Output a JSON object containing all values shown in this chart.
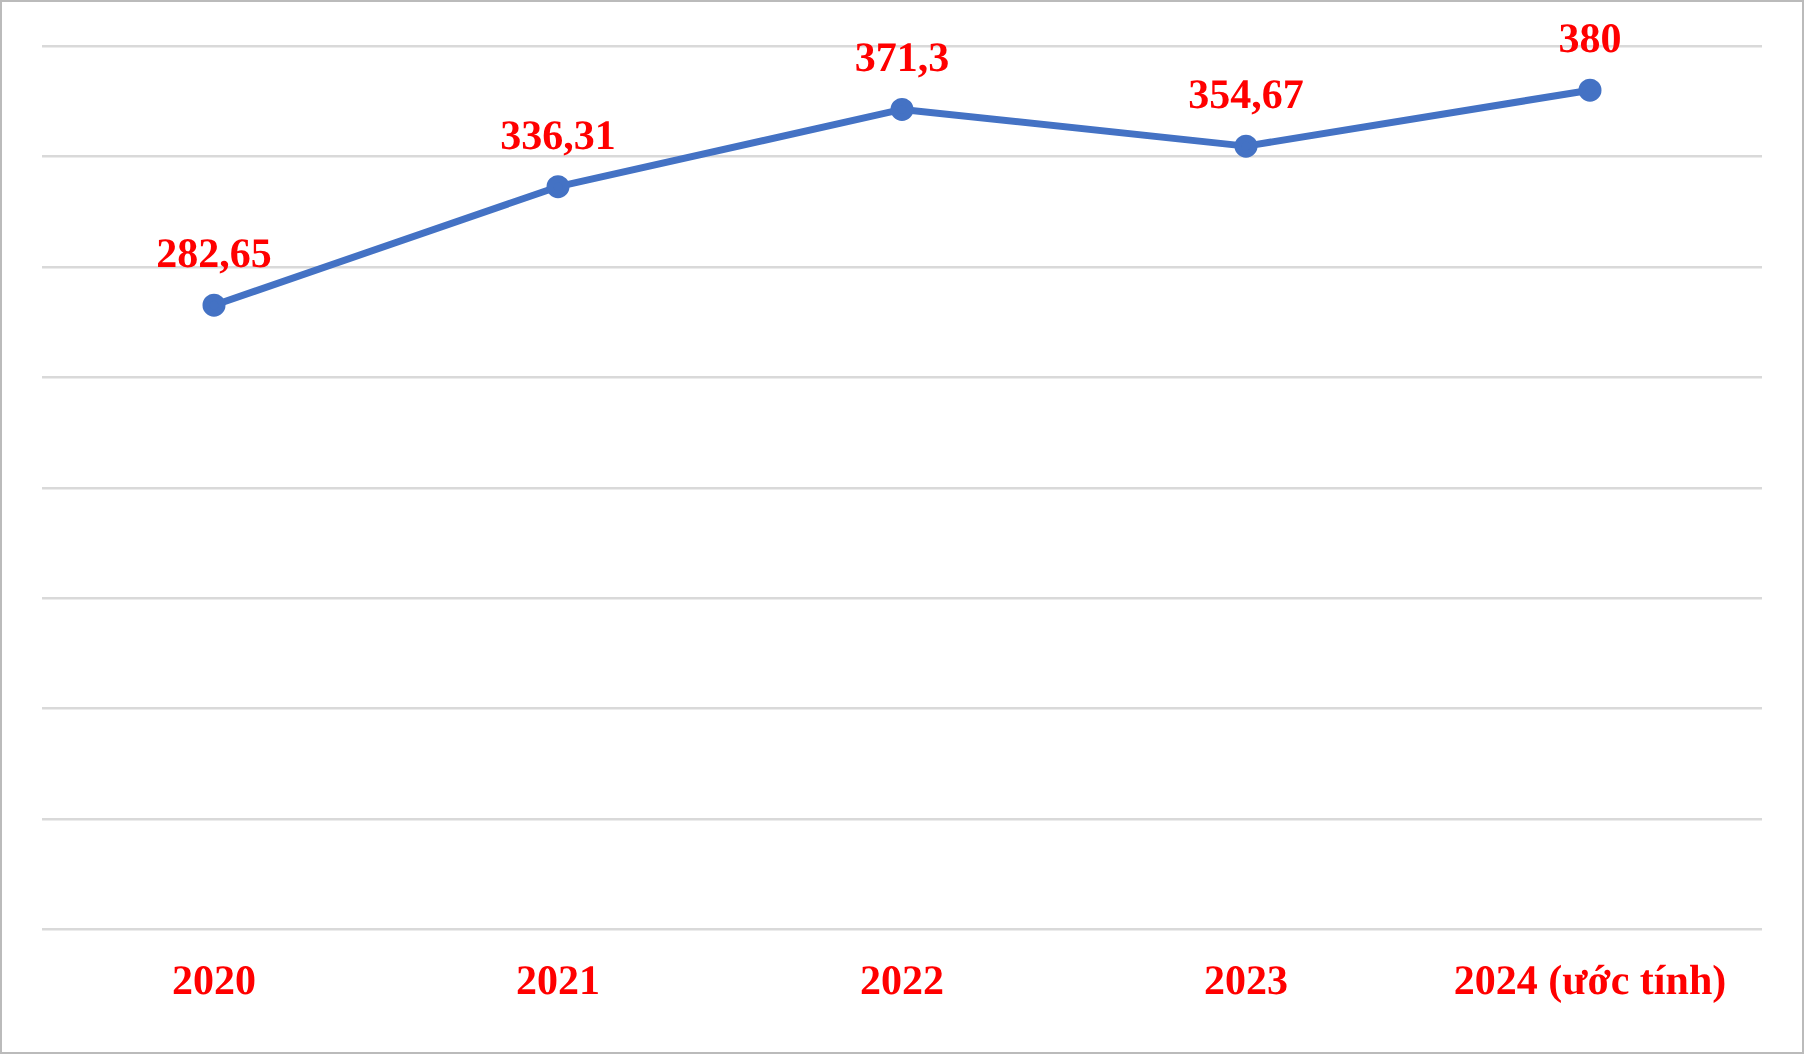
{
  "chart_data": {
    "type": "line",
    "categories": [
      "2020",
      "2021",
      "2022",
      "2023",
      "2024 (ước tính)"
    ],
    "series": [
      {
        "color": "#4472c4",
        "values": [
          282.65,
          336.31,
          371.3,
          354.67,
          380
        ],
        "value_labels": [
          "282,65",
          "336,31",
          "371,3",
          "354,67",
          "380"
        ]
      }
    ],
    "ylim": [
      0,
      400
    ],
    "yticks": [
      {
        "value": 0,
        "label": null
      },
      {
        "value": 50,
        "label": null
      },
      {
        "value": 100,
        "label": null
      },
      {
        "value": 150,
        "label": null
      },
      {
        "value": 200,
        "label": null
      },
      {
        "value": 250,
        "label": null
      },
      {
        "value": 300,
        "label": null
      },
      {
        "value": 350,
        "label": null
      },
      {
        "value": 400,
        "label": null
      }
    ],
    "grid": "y",
    "tick_labels": "x",
    "legend": false,
    "marker": "circle",
    "line_style": "solid"
  }
}
